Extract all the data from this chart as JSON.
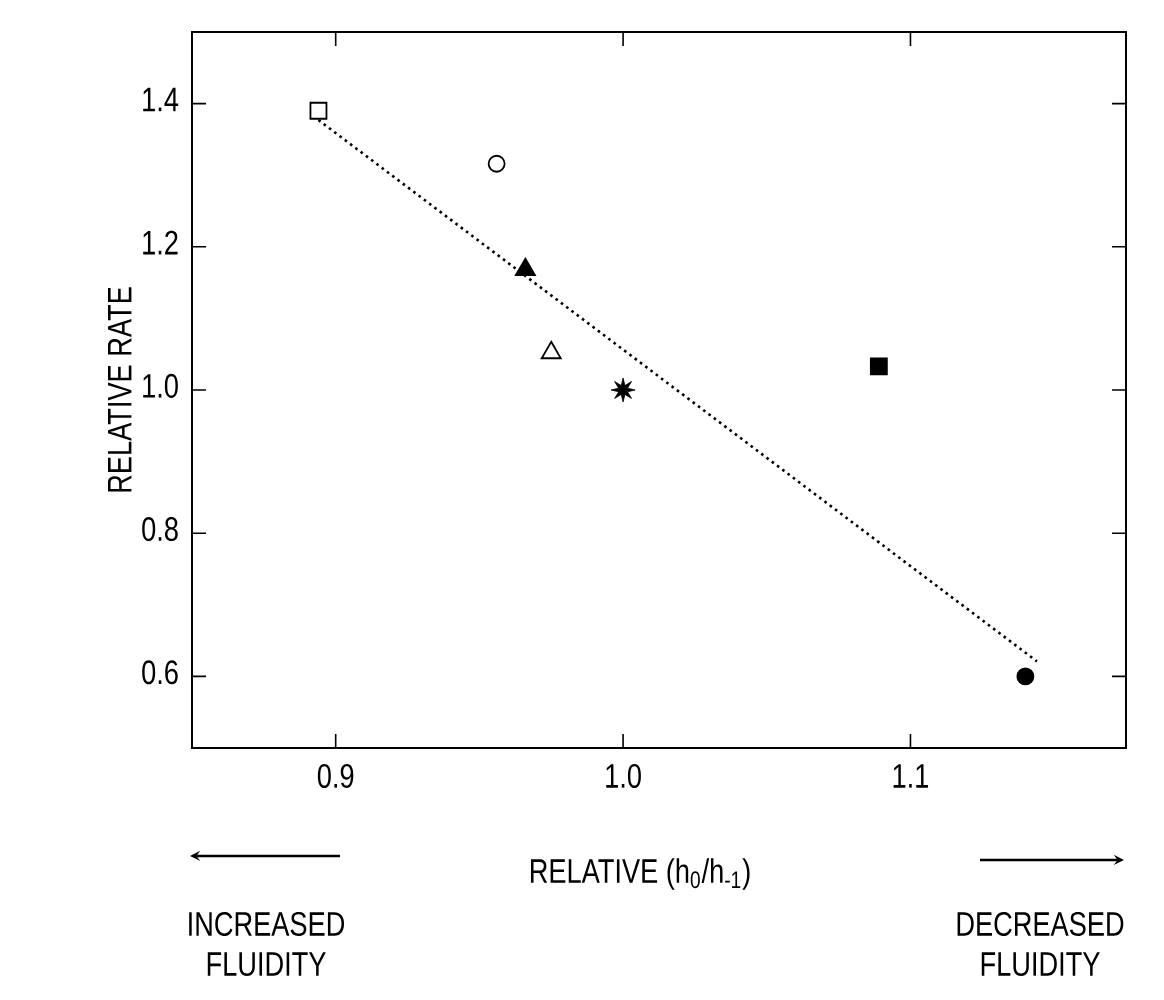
{
  "chart_data": {
    "type": "scatter",
    "xlabel": "RELATIVE (h$_{0}$/h$_{-1}$)",
    "ylabel": "RELATIVE RATE",
    "xlim": [
      0.85,
      1.175
    ],
    "ylim": [
      0.5,
      1.5
    ],
    "xticks": [
      0.9,
      {
        "value": 1.0,
        "label": "1.0"
      },
      1.1
    ],
    "yticks": [
      0.6,
      0.8,
      {
        "value": 1.0,
        "label": "1.0"
      },
      1.2,
      1.4
    ],
    "grid": false,
    "annotations": [
      "INCREASED FLUIDITY",
      "DECREASED FLUIDITY"
    ],
    "series": [
      {
        "marker": "square",
        "color": "#ffffff",
        "x": [
          0.894
        ],
        "values": [
          1.39
        ]
      },
      {
        "marker": "circle",
        "color": "#ffffff",
        "x": [
          0.956
        ],
        "values": [
          1.316
        ]
      },
      {
        "marker": "triangle",
        "color": "#000000",
        "x": [
          0.966
        ],
        "values": [
          1.168
        ]
      },
      {
        "marker": "triangle",
        "color": "#ffffff",
        "x": [
          0.975
        ],
        "values": [
          1.052
        ]
      },
      {
        "marker": "star",
        "color": "#000000",
        "x": [
          1.0
        ],
        "values": [
          1.0
        ]
      },
      {
        "marker": "square",
        "color": "#000000",
        "x": [
          1.089
        ],
        "values": [
          1.033
        ]
      },
      {
        "marker": "circle",
        "color": "#000000",
        "x": [
          1.14
        ],
        "values": [
          0.6
        ]
      },
      {
        "type": "line",
        "marker": "none",
        "line_style": "dotted",
        "color": "#000000",
        "x": [
          0.894,
          1.144
        ],
        "values": [
          1.377,
          0.621
        ]
      }
    ]
  }
}
